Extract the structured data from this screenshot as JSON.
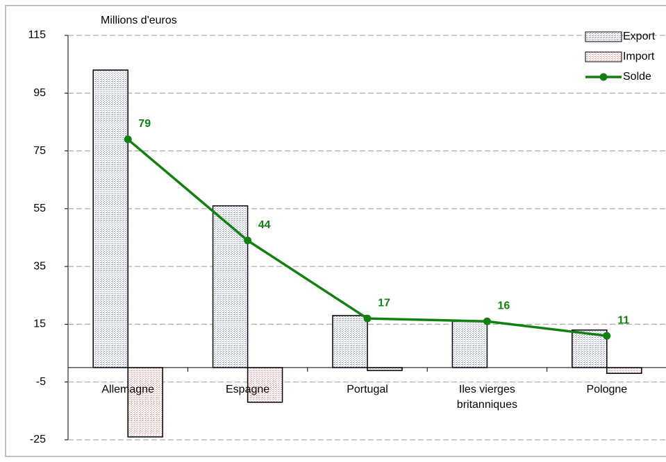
{
  "chart_data": {
    "type": "bar-line",
    "y_label": "Millions d'euros",
    "categories": [
      "Allemagne",
      "Espagne",
      "Portugal",
      "Iles vierges britanniques",
      "Pologne"
    ],
    "series": [
      {
        "name": "Export",
        "type": "bar",
        "color": "#9aa6c4",
        "values": [
          103,
          56,
          18,
          16,
          13
        ]
      },
      {
        "name": "Import",
        "type": "bar",
        "color": "#e8a0a0",
        "values": [
          -24,
          -12,
          -1,
          0,
          -2
        ]
      },
      {
        "name": "Solde",
        "type": "line",
        "color": "#118011",
        "values": [
          79,
          44,
          17,
          16,
          11
        ]
      }
    ],
    "ylim": [
      -25,
      115
    ],
    "yticks": [
      -25,
      -5,
      15,
      35,
      55,
      75,
      95,
      115
    ],
    "grid": true,
    "legend": "top-right"
  }
}
